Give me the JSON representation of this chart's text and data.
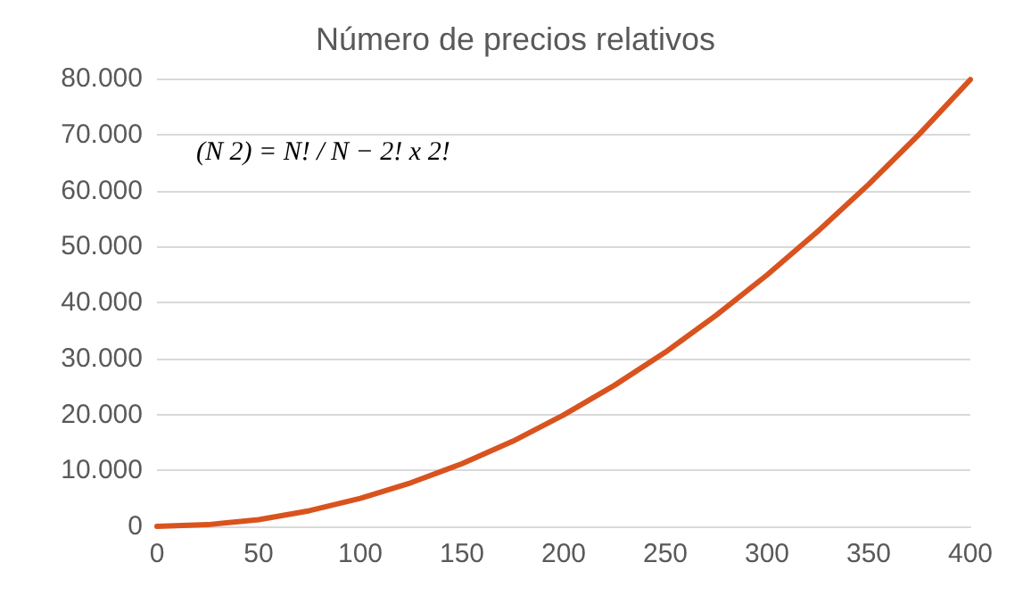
{
  "chart_data": {
    "type": "line",
    "title": "Número de precios relativos",
    "x": [
      0,
      25,
      50,
      75,
      100,
      125,
      150,
      175,
      200,
      225,
      250,
      275,
      300,
      325,
      350,
      375,
      400
    ],
    "series": [
      {
        "color": "#d9531e",
        "values": [
          0,
          300,
          1200,
          2800,
          5000,
          7800,
          11200,
          15200,
          19900,
          25200,
          31100,
          37700,
          44900,
          52700,
          61100,
          70100,
          79800
        ]
      }
    ],
    "xlim": [
      0,
      400
    ],
    "xticks": [
      0,
      50,
      100,
      150,
      200,
      250,
      300,
      350,
      400
    ],
    "ylim": [
      0,
      80000
    ],
    "yticks": [
      {
        "value": 0,
        "label": "0"
      },
      {
        "value": 10000,
        "label": "10.000"
      },
      {
        "value": 20000,
        "label": "20.000"
      },
      {
        "value": 30000,
        "label": "30.000"
      },
      {
        "value": 40000,
        "label": "40.000"
      },
      {
        "value": 50000,
        "label": "50.000"
      },
      {
        "value": 60000,
        "label": "60.000"
      },
      {
        "value": 70000,
        "label": "70.000"
      },
      {
        "value": 80000,
        "label": "80.000"
      }
    ],
    "grid": "y",
    "marker": "none",
    "line_style": "solid",
    "annotations": [
      "(N 2) = N! / N − 2! x 2!"
    ]
  }
}
